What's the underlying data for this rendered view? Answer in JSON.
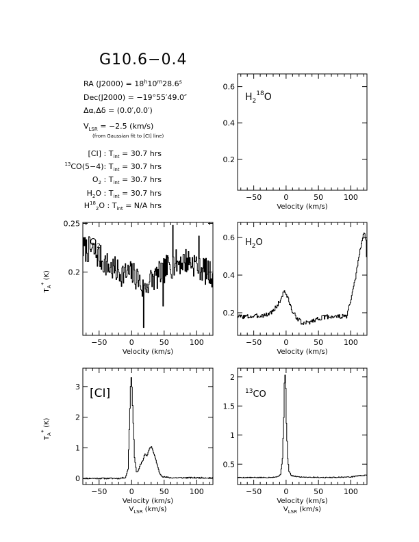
{
  "title": "G10.6−0.4",
  "header": {
    "ra": {
      "label": "RA (J2000) = 18",
      "h": "h",
      "mid": "10",
      "m": "m",
      "rest": "28.6",
      "s": "s"
    },
    "dec": {
      "label": "Dec(J2000) = −19°55′49.0″"
    },
    "offset": {
      "label": "Δα,Δδ = (0.0′,0.0′)"
    },
    "vlsr": {
      "v": "V",
      "sub": "LSR",
      "rest": " = −2.5 (km/s)"
    },
    "note": "(from Gaussian fit to [CI] line)",
    "tint": [
      {
        "pre": "",
        "sup": "",
        "name": "[CI] : T",
        "sub": "int",
        "val": " = 30.7 hrs"
      },
      {
        "pre": "",
        "sup": "13",
        "name": "CO(5−4): T",
        "sub": "int",
        "val": " = 30.7 hrs"
      },
      {
        "pre": "O",
        "sup": "",
        "osub": "2",
        "name": " : T",
        "sub": "int",
        "val": " = 30.7 hrs"
      },
      {
        "pre": "H",
        "sup": "",
        "osub": "2",
        "name": "O : T",
        "sub": "int",
        "val": " = 30.7 hrs"
      },
      {
        "pre": "H",
        "sup": "18",
        "osub": "2",
        "name": "O : T",
        "sub": "int",
        "val": " = N/A hrs"
      }
    ]
  },
  "axis_text": {
    "xlabel": "Velocity (km/s)",
    "xlabel_bottom_v": "V",
    "xlabel_bottom_sub": "LSR",
    "xlabel_bottom_rest": " (km/s)",
    "ylabel_T": "T",
    "ylabel_A": "A",
    "ylabel_star": "*",
    "ylabel_rest": " (K)"
  },
  "chart_data": [
    {
      "type": "line",
      "id": "h218o",
      "label": {
        "a": "H",
        "sub": "2",
        "sup": "18",
        "b": "O"
      },
      "xlim": [
        -75,
        125
      ],
      "ylim": [
        0.03,
        0.67
      ],
      "xticks": [
        -50,
        0,
        50,
        100
      ],
      "yticks": [
        0.2,
        0.4,
        0.6
      ],
      "ytick_labels": [
        "0.2",
        "0.4",
        "0.6"
      ],
      "xlabel": "Velocity (km/s)",
      "ylabel": "",
      "series": []
    },
    {
      "type": "line",
      "id": "o2",
      "label": {
        "a": "O",
        "sub": "2",
        "sup": "",
        "b": ""
      },
      "xlim": [
        -75,
        125
      ],
      "ylim": [
        0.135,
        0.251
      ],
      "xticks": [
        -50,
        0,
        50,
        100
      ],
      "yticks": [
        0.2,
        0.25
      ],
      "ytick_labels": [
        "0.2",
        "0.25"
      ],
      "xlabel": "Velocity (km/s)",
      "ylabel": "T_A* (K)",
      "series": [
        {
          "mean": [
            [
              -75,
              0.224
            ],
            [
              -60,
              0.222
            ],
            [
              -45,
              0.212
            ],
            [
              -35,
              0.205
            ],
            [
              -20,
              0.2
            ],
            [
              -10,
              0.198
            ],
            [
              0,
              0.198
            ],
            [
              10,
              0.193
            ],
            [
              18,
              0.18
            ],
            [
              25,
              0.19
            ],
            [
              40,
              0.196
            ],
            [
              55,
              0.205
            ],
            [
              70,
              0.21
            ],
            [
              85,
              0.212
            ],
            [
              100,
              0.208
            ],
            [
              115,
              0.2
            ],
            [
              125,
              0.197
            ]
          ],
          "noise": 0.014,
          "seed": 7,
          "extra": [
            [
              48,
              0.165
            ],
            [
              63,
              0.248
            ],
            [
              103,
              0.237
            ],
            [
              18,
              0.143
            ]
          ]
        }
      ]
    },
    {
      "type": "line",
      "id": "h2o",
      "label": {
        "a": "H",
        "sub": "2",
        "sup": "",
        "b": "O"
      },
      "xlim": [
        -75,
        125
      ],
      "ylim": [
        0.08,
        0.68
      ],
      "xticks": [
        -50,
        0,
        50,
        100
      ],
      "yticks": [
        0.2,
        0.4,
        0.6
      ],
      "ytick_labels": [
        "0.2",
        "0.4",
        "0.6"
      ],
      "xlabel": "Velocity (km/s)",
      "ylabel": "",
      "series": [
        {
          "mean": [
            [
              -75,
              0.18
            ],
            [
              -50,
              0.18
            ],
            [
              -30,
              0.19
            ],
            [
              -20,
              0.21
            ],
            [
              -10,
              0.26
            ],
            [
              -3,
              0.32
            ],
            [
              3,
              0.27
            ],
            [
              10,
              0.2
            ],
            [
              15,
              0.18
            ],
            [
              25,
              0.14
            ],
            [
              35,
              0.15
            ],
            [
              50,
              0.17
            ],
            [
              65,
              0.18
            ],
            [
              85,
              0.18
            ],
            [
              93,
              0.18
            ],
            [
              98,
              0.24
            ],
            [
              105,
              0.35
            ],
            [
              110,
              0.45
            ],
            [
              115,
              0.55
            ],
            [
              120,
              0.63
            ],
            [
              123,
              0.58
            ],
            [
              125,
              0.42
            ]
          ],
          "noise": 0.012,
          "seed": 3,
          "extra": []
        }
      ]
    },
    {
      "type": "line",
      "id": "ci",
      "label": {
        "a": "[CI]",
        "sub": "",
        "sup": "",
        "b": ""
      },
      "xlim": [
        -75,
        125
      ],
      "ylim": [
        -0.2,
        3.6
      ],
      "xticks": [
        -50,
        0,
        50,
        100
      ],
      "yticks": [
        0,
        1,
        2,
        3
      ],
      "ytick_labels": [
        "0",
        "1",
        "2",
        "3"
      ],
      "xlabel": "Velocity (km/s)",
      "ylabel": "T_A* (K)",
      "series": [
        {
          "mean": [
            [
              -75,
              0.0
            ],
            [
              -20,
              0.0
            ],
            [
              -10,
              0.03
            ],
            [
              -6,
              0.3
            ],
            [
              -4,
              1.6
            ],
            [
              -2,
              3.0
            ],
            [
              -1,
              3.3
            ],
            [
              0,
              3.0
            ],
            [
              2,
              1.8
            ],
            [
              4,
              0.7
            ],
            [
              7,
              0.2
            ],
            [
              10,
              0.25
            ],
            [
              13,
              0.45
            ],
            [
              17,
              0.6
            ],
            [
              20,
              0.8
            ],
            [
              23,
              0.72
            ],
            [
              27,
              0.98
            ],
            [
              30,
              1.05
            ],
            [
              33,
              0.85
            ],
            [
              37,
              0.6
            ],
            [
              40,
              0.35
            ],
            [
              43,
              0.15
            ],
            [
              48,
              0.05
            ],
            [
              60,
              0.02
            ],
            [
              125,
              0.02
            ]
          ],
          "noise": 0.02,
          "seed": 11,
          "extra": []
        }
      ]
    },
    {
      "type": "line",
      "id": "13co",
      "label": {
        "a": "",
        "sub": "",
        "sup": "13",
        "b": "CO"
      },
      "xlim": [
        -75,
        125
      ],
      "ylim": [
        0.15,
        2.15
      ],
      "xticks": [
        -50,
        0,
        50,
        100
      ],
      "yticks": [
        0.5,
        1,
        1.5,
        2
      ],
      "ytick_labels": [
        "0.5",
        "1",
        "1.5",
        "2"
      ],
      "xlabel": "Velocity (km/s)",
      "ylabel": "",
      "series": [
        {
          "mean": [
            [
              -75,
              0.27
            ],
            [
              -30,
              0.27
            ],
            [
              -15,
              0.28
            ],
            [
              -9,
              0.32
            ],
            [
              -6,
              0.6
            ],
            [
              -4,
              1.3
            ],
            [
              -3,
              1.9
            ],
            [
              -2,
              2.03
            ],
            [
              -1,
              1.8
            ],
            [
              0,
              1.2
            ],
            [
              2,
              0.6
            ],
            [
              4,
              0.38
            ],
            [
              8,
              0.3
            ],
            [
              20,
              0.28
            ],
            [
              60,
              0.27
            ],
            [
              100,
              0.28
            ],
            [
              110,
              0.3
            ],
            [
              125,
              0.31
            ]
          ],
          "noise": 0.007,
          "seed": 5,
          "extra": []
        }
      ]
    }
  ]
}
